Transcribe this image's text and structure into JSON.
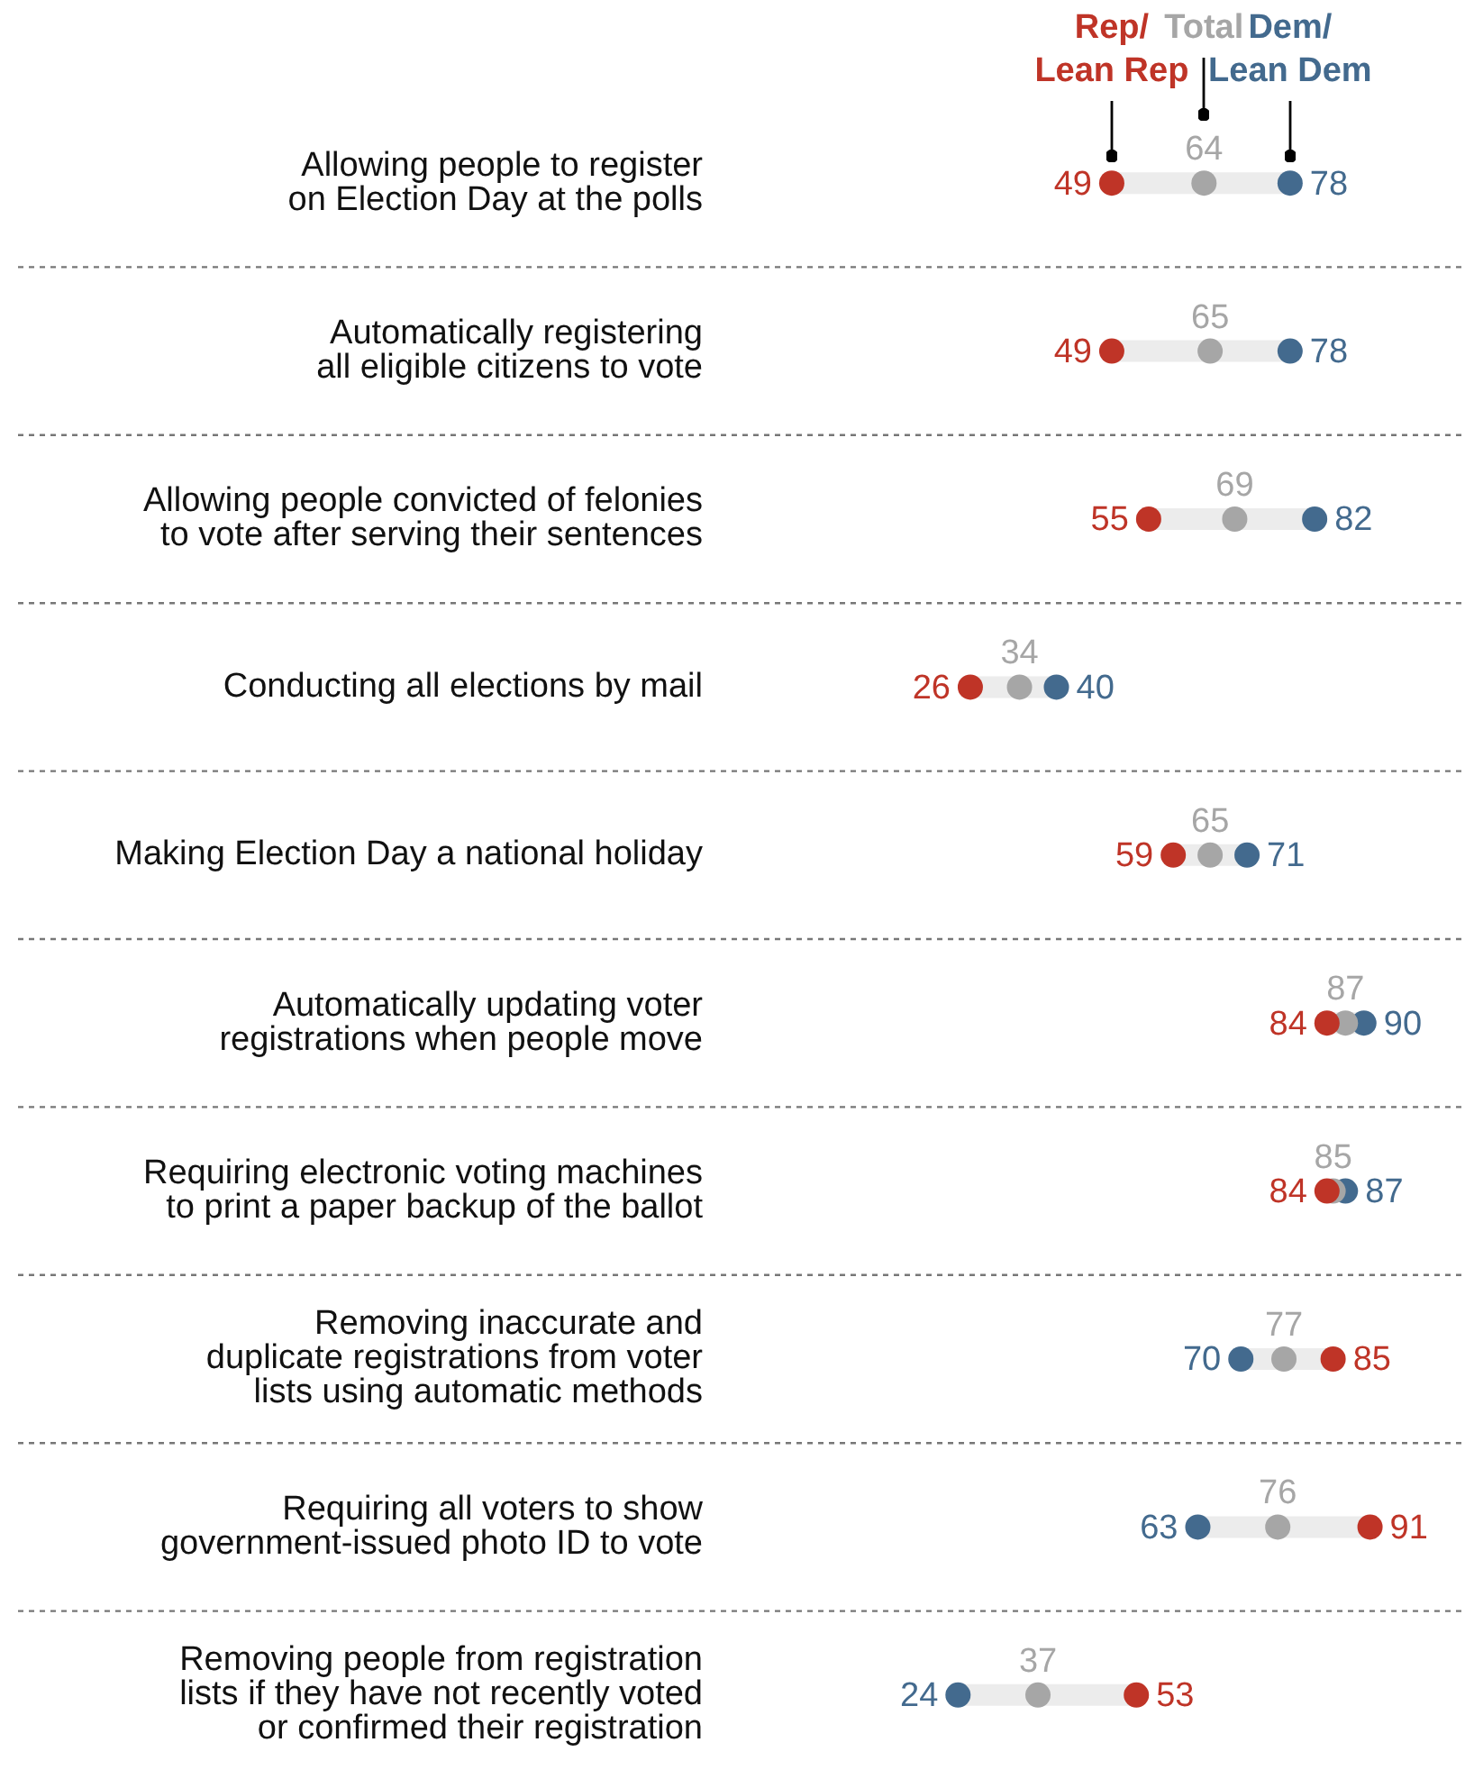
{
  "chart_data": {
    "type": "scatter",
    "orientation": "horizontal",
    "categories": [
      "Allowing people to register\non Election Day at the polls",
      "Automatically registering\nall eligible citizens to vote",
      "Allowing people convicted of felonies\nto vote after serving their sentences",
      "Conducting all elections by mail",
      "Making Election Day a national holiday",
      "Automatically updating voter\nregistrations when people move",
      "Requiring electronic voting machines\nto print a paper backup of the ballot",
      "Removing inaccurate and\nduplicate registrations from voter\nlists using automatic methods",
      "Requiring all voters to show\ngovernment-issued photo ID to vote",
      "Removing people from registration\nlists if they have not recently voted\nor confirmed their registration"
    ],
    "series": [
      {
        "name": "Rep/\nLean Rep",
        "color": "#bf3427",
        "values": [
          49,
          49,
          55,
          26,
          59,
          84,
          84,
          85,
          91,
          53
        ]
      },
      {
        "name": "Total",
        "color": "#a6a6a6",
        "values": [
          64,
          65,
          69,
          34,
          65,
          87,
          85,
          77,
          76,
          37
        ]
      },
      {
        "name": "Dem/\nLean Dem",
        "color": "#436a8e",
        "values": [
          78,
          78,
          82,
          40,
          71,
          90,
          87,
          70,
          63,
          24
        ]
      }
    ],
    "tick_labels": "y",
    "grid": "y",
    "legend": "top",
    "data_labels": true,
    "marker": "circle"
  }
}
